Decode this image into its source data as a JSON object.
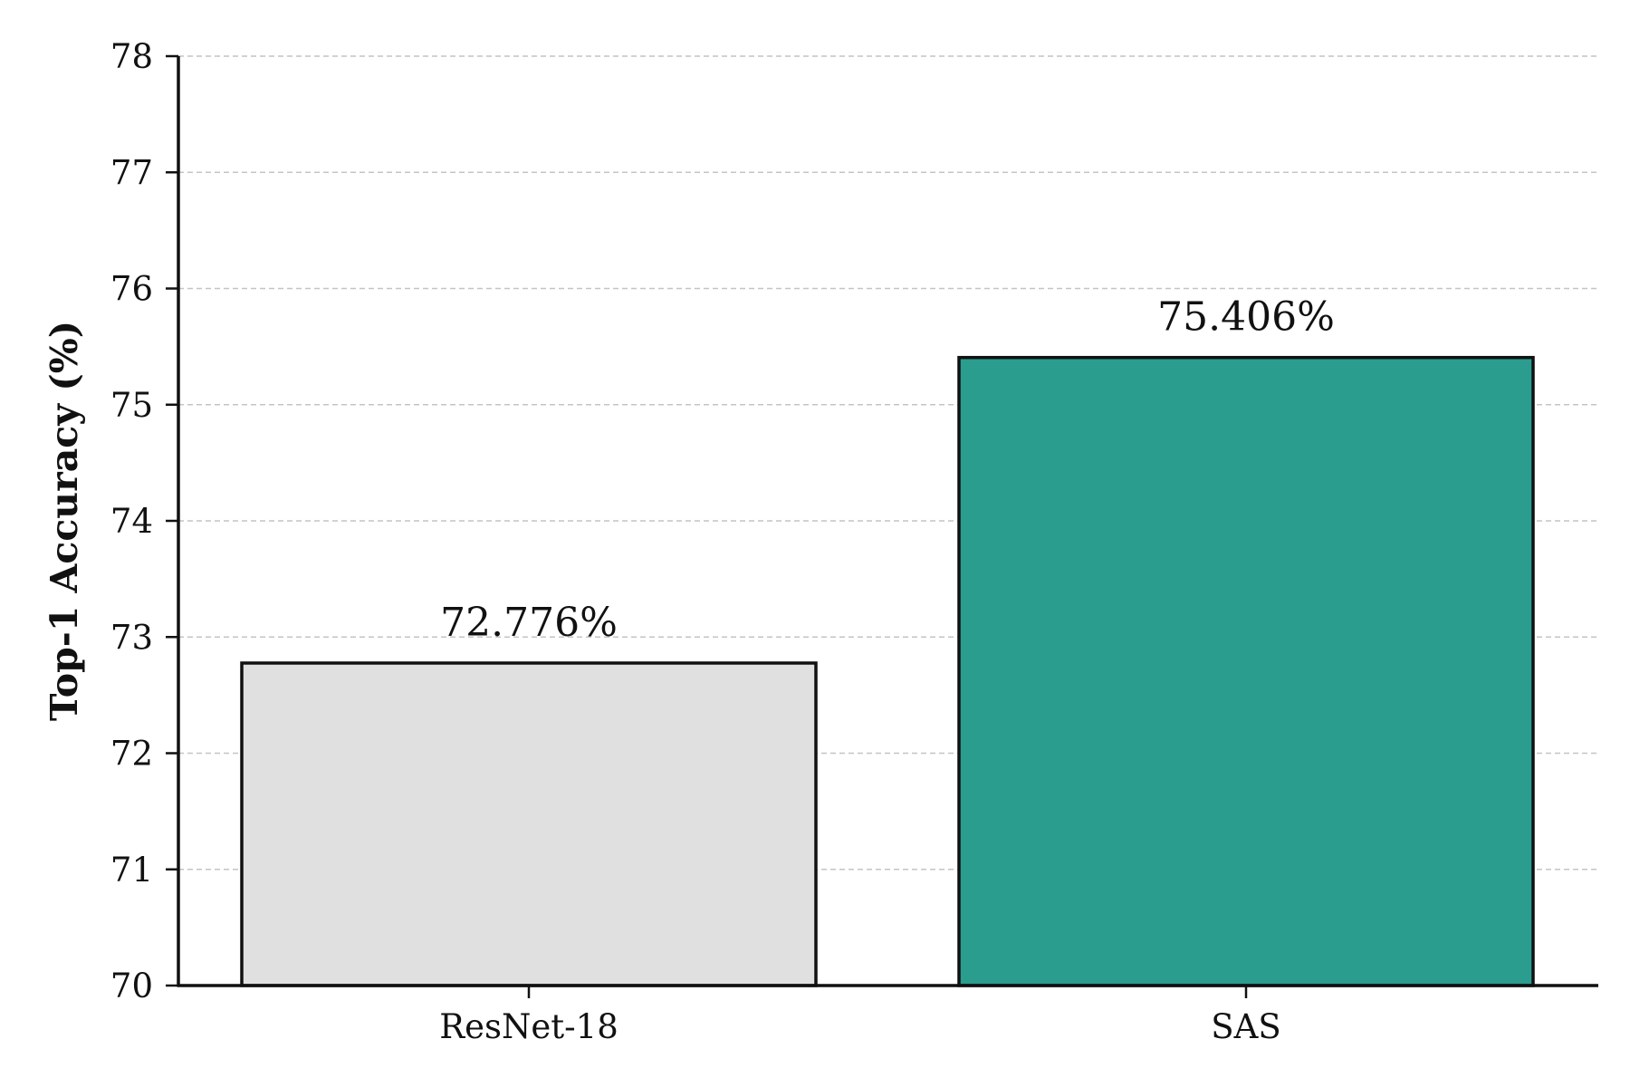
{
  "chart_data": {
    "type": "bar",
    "title": "",
    "xlabel": "",
    "ylabel": "Top-1 Accuracy (%)",
    "categories": [
      "ResNet-18",
      "SAS"
    ],
    "values": [
      72.776,
      75.406
    ],
    "data_labels": [
      "72.776%",
      "75.406%"
    ],
    "bar_colors": [
      "#e0e0e0",
      "#2a9d8f"
    ],
    "bar_edge_color": "#111111",
    "ylim": [
      70,
      78
    ],
    "yticks": [
      70,
      71,
      72,
      73,
      74,
      75,
      76,
      77,
      78
    ],
    "grid": "y-dashed",
    "legend": "none"
  }
}
